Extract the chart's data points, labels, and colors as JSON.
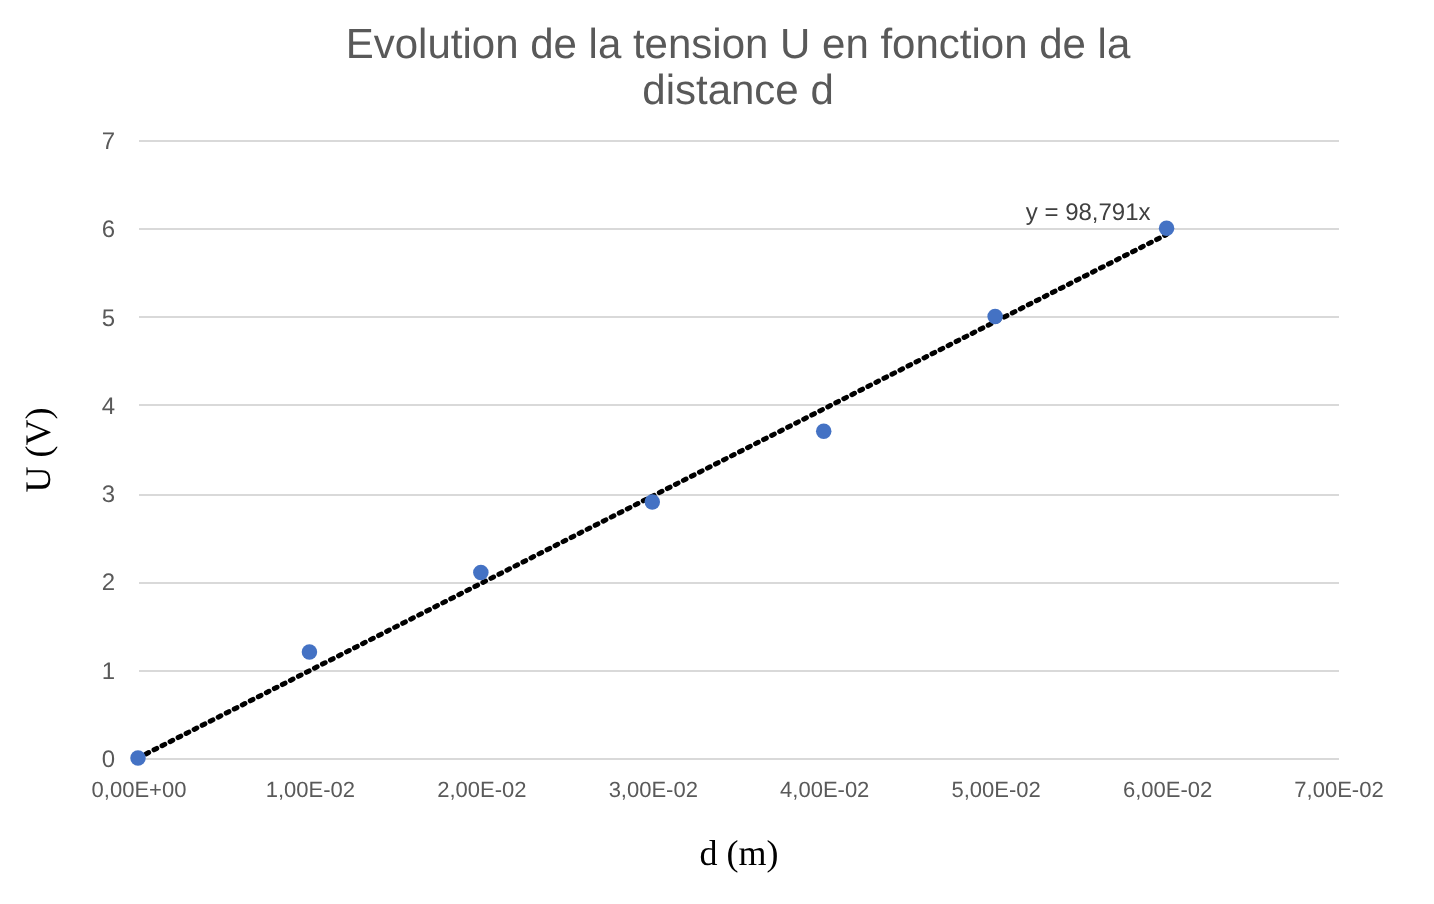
{
  "chart_data": {
    "type": "scatter",
    "title": "Evolution de la tension U en fonction de la distance d",
    "xlabel": "d (m)",
    "ylabel": "U (V)",
    "categories": [
      "0,00E+00",
      "1,00E-02",
      "2,00E-02",
      "3,00E-02",
      "4,00E-02",
      "5,00E-02",
      "6,00E-02",
      "7,00E-02"
    ],
    "series": [
      {
        "color": "#4472c4",
        "marker": "circle",
        "values": [
          0,
          1.2,
          2.1,
          2.9,
          3.7,
          5.0,
          6.0,
          null
        ]
      },
      {
        "type": "line",
        "color": "#000000",
        "line_style": "dotted",
        "x": [
          "0,00E+00",
          "6,00E-02"
        ],
        "values": [
          0,
          5.93
        ]
      }
    ],
    "annotations": [
      {
        "text": "y = 98,791x",
        "x": "6,00E-02",
        "y": 5.93
      }
    ],
    "ylim": [
      0,
      7
    ],
    "yticks": [
      0,
      1,
      2,
      3,
      4,
      5,
      6,
      7
    ],
    "grid": "y"
  }
}
